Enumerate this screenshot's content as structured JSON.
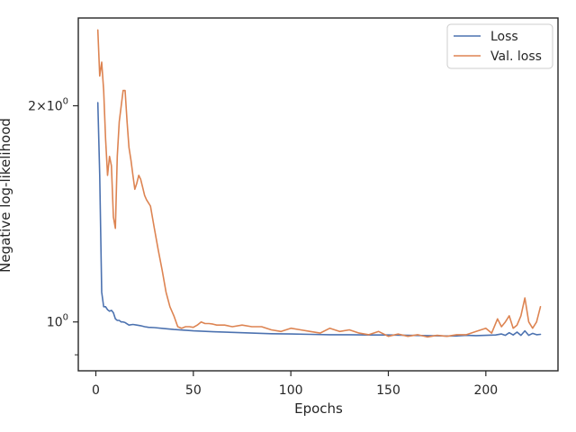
{
  "chart_data": {
    "type": "line",
    "xlabel": "Epochs",
    "ylabel": "Negative log-likelihood",
    "y_scale": "log",
    "xlim": [
      -9,
      237
    ],
    "ylim": [
      0.855,
      2.65
    ],
    "x_ticks": [
      0,
      50,
      100,
      150,
      200
    ],
    "x_tick_labels": [
      "0",
      "50",
      "100",
      "150",
      "200"
    ],
    "y_major_ticks": [
      {
        "value": 1,
        "base": "10",
        "exp": "0"
      },
      {
        "value": 2,
        "mant": "2",
        "base": "10",
        "exp": "0"
      }
    ],
    "y_minor_ticks": [
      0.9
    ],
    "legend_position": "top-right",
    "grid": false,
    "series": [
      {
        "name": "Loss",
        "color": "#4c72b0",
        "points": [
          [
            1,
            2.02
          ],
          [
            2,
            1.6
          ],
          [
            3,
            1.1
          ],
          [
            4,
            1.05
          ],
          [
            5,
            1.05
          ],
          [
            6,
            1.04
          ],
          [
            7,
            1.035
          ],
          [
            8,
            1.038
          ],
          [
            9,
            1.03
          ],
          [
            10,
            1.01
          ],
          [
            11,
            1.005
          ],
          [
            12,
            1.005
          ],
          [
            13,
            1.0
          ],
          [
            14,
            1.0
          ],
          [
            15,
            0.998
          ],
          [
            17,
            0.99
          ],
          [
            19,
            0.992
          ],
          [
            21,
            0.99
          ],
          [
            23,
            0.988
          ],
          [
            25,
            0.985
          ],
          [
            27,
            0.983
          ],
          [
            30,
            0.982
          ],
          [
            35,
            0.979
          ],
          [
            40,
            0.976
          ],
          [
            45,
            0.974
          ],
          [
            50,
            0.972
          ],
          [
            60,
            0.969
          ],
          [
            70,
            0.967
          ],
          [
            80,
            0.965
          ],
          [
            90,
            0.963
          ],
          [
            100,
            0.962
          ],
          [
            110,
            0.961
          ],
          [
            120,
            0.96
          ],
          [
            130,
            0.96
          ],
          [
            140,
            0.959
          ],
          [
            150,
            0.959
          ],
          [
            160,
            0.958
          ],
          [
            170,
            0.957
          ],
          [
            180,
            0.956
          ],
          [
            185,
            0.956
          ],
          [
            190,
            0.958
          ],
          [
            195,
            0.957
          ],
          [
            200,
            0.958
          ],
          [
            205,
            0.959
          ],
          [
            208,
            0.962
          ],
          [
            210,
            0.958
          ],
          [
            212,
            0.966
          ],
          [
            214,
            0.959
          ],
          [
            216,
            0.968
          ],
          [
            218,
            0.958
          ],
          [
            220,
            0.972
          ],
          [
            222,
            0.958
          ],
          [
            224,
            0.964
          ],
          [
            226,
            0.96
          ],
          [
            228,
            0.961
          ]
        ]
      },
      {
        "name": "Val. loss",
        "color": "#dd8452",
        "points": [
          [
            1,
            2.55
          ],
          [
            2,
            2.2
          ],
          [
            3,
            2.3
          ],
          [
            4,
            2.1
          ],
          [
            5,
            1.8
          ],
          [
            6,
            1.6
          ],
          [
            7,
            1.7
          ],
          [
            8,
            1.65
          ],
          [
            9,
            1.4
          ],
          [
            10,
            1.35
          ],
          [
            11,
            1.7
          ],
          [
            12,
            1.9
          ],
          [
            13,
            2.0
          ],
          [
            14,
            2.1
          ],
          [
            15,
            2.1
          ],
          [
            16,
            1.9
          ],
          [
            17,
            1.75
          ],
          [
            18,
            1.68
          ],
          [
            19,
            1.6
          ],
          [
            20,
            1.53
          ],
          [
            21,
            1.56
          ],
          [
            22,
            1.6
          ],
          [
            23,
            1.58
          ],
          [
            24,
            1.54
          ],
          [
            25,
            1.5
          ],
          [
            26,
            1.48
          ],
          [
            28,
            1.45
          ],
          [
            30,
            1.35
          ],
          [
            32,
            1.26
          ],
          [
            34,
            1.18
          ],
          [
            36,
            1.1
          ],
          [
            38,
            1.05
          ],
          [
            40,
            1.02
          ],
          [
            42,
            0.985
          ],
          [
            44,
            0.98
          ],
          [
            46,
            0.985
          ],
          [
            48,
            0.985
          ],
          [
            50,
            0.983
          ],
          [
            52,
            0.99
          ],
          [
            54,
            1.0
          ],
          [
            56,
            0.995
          ],
          [
            58,
            0.995
          ],
          [
            60,
            0.993
          ],
          [
            62,
            0.99
          ],
          [
            66,
            0.99
          ],
          [
            70,
            0.985
          ],
          [
            75,
            0.99
          ],
          [
            80,
            0.985
          ],
          [
            85,
            0.985
          ],
          [
            90,
            0.975
          ],
          [
            95,
            0.97
          ],
          [
            100,
            0.98
          ],
          [
            105,
            0.975
          ],
          [
            110,
            0.97
          ],
          [
            115,
            0.965
          ],
          [
            120,
            0.98
          ],
          [
            125,
            0.97
          ],
          [
            130,
            0.975
          ],
          [
            135,
            0.965
          ],
          [
            140,
            0.96
          ],
          [
            145,
            0.97
          ],
          [
            150,
            0.955
          ],
          [
            155,
            0.962
          ],
          [
            160,
            0.955
          ],
          [
            165,
            0.96
          ],
          [
            170,
            0.953
          ],
          [
            175,
            0.958
          ],
          [
            180,
            0.955
          ],
          [
            185,
            0.96
          ],
          [
            190,
            0.96
          ],
          [
            195,
            0.97
          ],
          [
            200,
            0.98
          ],
          [
            203,
            0.965
          ],
          [
            206,
            1.01
          ],
          [
            208,
            0.985
          ],
          [
            210,
            1.0
          ],
          [
            212,
            1.02
          ],
          [
            214,
            0.98
          ],
          [
            216,
            0.99
          ],
          [
            218,
            1.02
          ],
          [
            220,
            1.08
          ],
          [
            222,
            1.0
          ],
          [
            224,
            0.98
          ],
          [
            226,
            1.0
          ],
          [
            228,
            1.05
          ]
        ]
      }
    ]
  }
}
